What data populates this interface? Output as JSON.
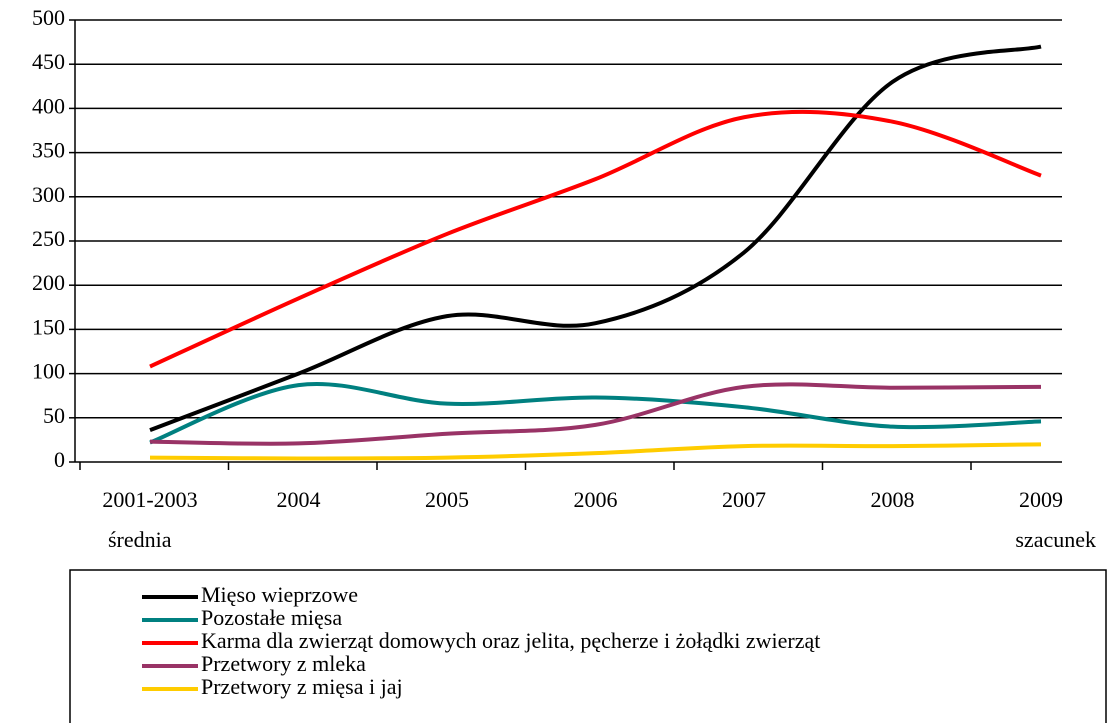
{
  "chart_data": {
    "type": "line",
    "categories": [
      [
        "2001-2003",
        "średnia"
      ],
      [
        "2004"
      ],
      [
        "2005"
      ],
      [
        "2006"
      ],
      [
        "2007"
      ],
      [
        "2008"
      ],
      [
        "2009",
        "szacunek"
      ]
    ],
    "series": [
      {
        "name": "Mięso wieprzowe",
        "color": "#000000",
        "values": [
          36,
          100,
          165,
          157,
          237,
          430,
          470
        ]
      },
      {
        "name": "Pozostałe mięsa",
        "color": "#008080",
        "values": [
          22,
          87,
          66,
          73,
          62,
          40,
          46
        ]
      },
      {
        "name": "Karma dla zwierząt domowych oraz jelita, pęcherze i żołądki zwierząt",
        "color": "#ff0000",
        "values": [
          108,
          185,
          258,
          320,
          390,
          385,
          324
        ]
      },
      {
        "name": "Przetwory z mleka",
        "color": "#993366",
        "values": [
          23,
          21,
          32,
          42,
          85,
          84,
          85
        ]
      },
      {
        "name": "Przetwory z mięsa i jaj",
        "color": "#ffcc00",
        "values": [
          5,
          4,
          5,
          10,
          18,
          18,
          20
        ]
      }
    ],
    "ylim": [
      0,
      500
    ],
    "yticks": [
      0,
      50,
      100,
      150,
      200,
      250,
      300,
      350,
      400,
      450,
      500
    ],
    "grid": true,
    "smooth": true,
    "legend": "bottom"
  }
}
